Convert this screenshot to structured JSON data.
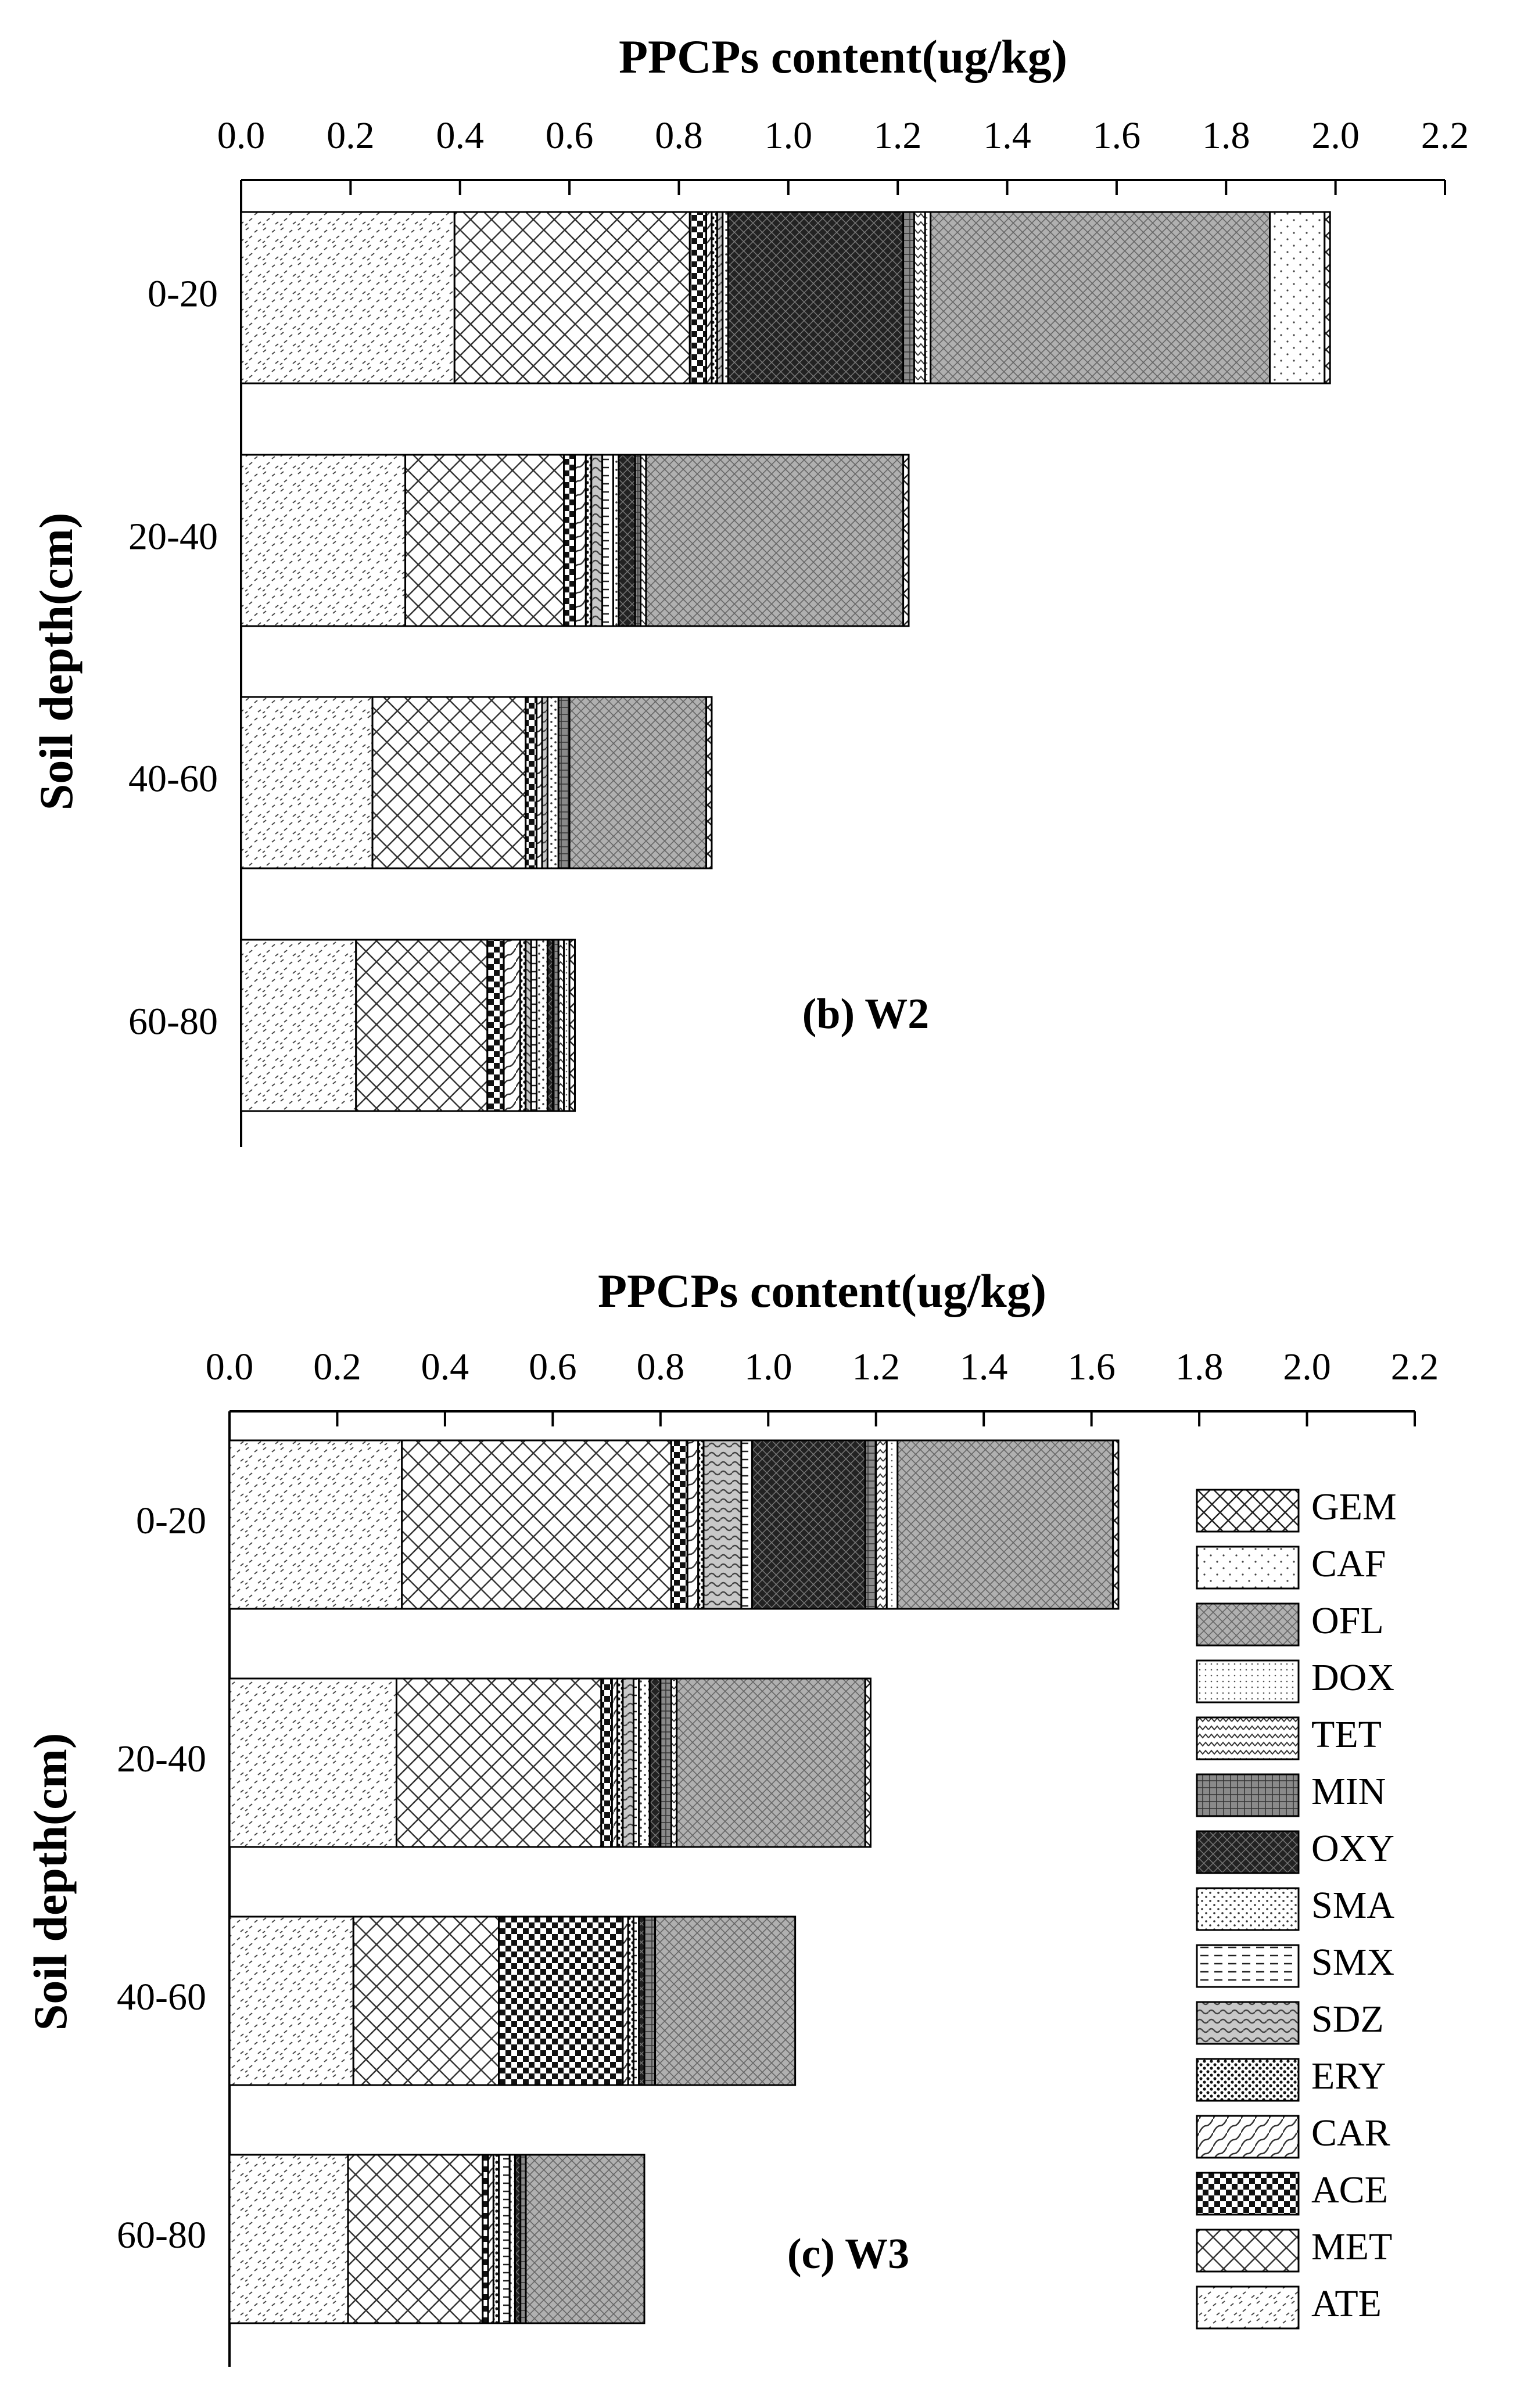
{
  "chart_data": [
    {
      "type": "bar",
      "orientation": "horizontal",
      "stacked": true,
      "title": "PPCPs content(ug/kg)",
      "xlabel": "PPCPs content(ug/kg)",
      "ylabel": "Soil depth(cm)",
      "panel_label": "(b) W2",
      "xlim": [
        0,
        2.2
      ],
      "xticks": [
        "0.0",
        "0.2",
        "0.4",
        "0.6",
        "0.8",
        "1.0",
        "1.2",
        "1.4",
        "1.6",
        "1.8",
        "2.0",
        "2.2"
      ],
      "categories": [
        "0-20",
        "20-40",
        "40-60",
        "60-80"
      ],
      "series": [
        {
          "name": "ATE",
          "values": [
            0.39,
            0.3,
            0.24,
            0.21
          ]
        },
        {
          "name": "MET",
          "values": [
            0.43,
            0.29,
            0.28,
            0.24
          ]
        },
        {
          "name": "ACE",
          "values": [
            0.03,
            0.02,
            0.02,
            0.03
          ]
        },
        {
          "name": "CAR",
          "values": [
            0.01,
            0.02,
            0.01,
            0.03
          ]
        },
        {
          "name": "ERY",
          "values": [
            0.01,
            0.01,
            0.0,
            0.01
          ]
        },
        {
          "name": "SDZ",
          "values": [
            0.01,
            0.02,
            0.01,
            0.01
          ]
        },
        {
          "name": "SMX",
          "values": [
            0.0,
            0.02,
            0.0,
            0.01
          ]
        },
        {
          "name": "SMA",
          "values": [
            0.01,
            0.01,
            0.02,
            0.02
          ]
        },
        {
          "name": "OXY",
          "values": [
            0.32,
            0.03,
            0.0,
            0.01
          ]
        },
        {
          "name": "MIN",
          "values": [
            0.02,
            0.01,
            0.02,
            0.01
          ]
        },
        {
          "name": "TET",
          "values": [
            0.02,
            0.01,
            0.0,
            0.01
          ]
        },
        {
          "name": "DOX",
          "values": [
            0.01,
            0.0,
            0.0,
            0.01
          ]
        },
        {
          "name": "OFL",
          "values": [
            0.62,
            0.47,
            0.25,
            0.0
          ]
        },
        {
          "name": "CAF",
          "values": [
            0.1,
            0.0,
            0.0,
            0.0
          ]
        },
        {
          "name": "GEM",
          "values": [
            0.01,
            0.01,
            0.01,
            0.01
          ]
        }
      ]
    },
    {
      "type": "bar",
      "orientation": "horizontal",
      "stacked": true,
      "title": "PPCPs content(ug/kg)",
      "xlabel": "PPCPs content(ug/kg)",
      "ylabel": "Soil depth(cm)",
      "panel_label": "(c) W3",
      "xlim": [
        0,
        2.2
      ],
      "xticks": [
        "0.0",
        "0.2",
        "0.4",
        "0.6",
        "0.8",
        "1.0",
        "1.2",
        "1.4",
        "1.6",
        "1.8",
        "2.0",
        "2.2"
      ],
      "categories": [
        "0-20",
        "20-40",
        "40-60",
        "60-80"
      ],
      "series": [
        {
          "name": "ATE",
          "values": [
            0.32,
            0.31,
            0.23,
            0.22
          ]
        },
        {
          "name": "MET",
          "values": [
            0.5,
            0.38,
            0.27,
            0.25
          ]
        },
        {
          "name": "ACE",
          "values": [
            0.03,
            0.02,
            0.23,
            0.01
          ]
        },
        {
          "name": "CAR",
          "values": [
            0.02,
            0.01,
            0.01,
            0.01
          ]
        },
        {
          "name": "ERY",
          "values": [
            0.01,
            0.01,
            0.01,
            0.01
          ]
        },
        {
          "name": "SDZ",
          "values": [
            0.07,
            0.02,
            0.0,
            0.0
          ]
        },
        {
          "name": "SMX",
          "values": [
            0.02,
            0.01,
            0.01,
            0.02
          ]
        },
        {
          "name": "SMA",
          "values": [
            0.0,
            0.02,
            0.0,
            0.01
          ]
        },
        {
          "name": "OXY",
          "values": [
            0.21,
            0.02,
            0.01,
            0.01
          ]
        },
        {
          "name": "MIN",
          "values": [
            0.02,
            0.02,
            0.02,
            0.01
          ]
        },
        {
          "name": "TET",
          "values": [
            0.02,
            0.01,
            0.0,
            0.0
          ]
        },
        {
          "name": "DOX",
          "values": [
            0.02,
            0.0,
            0.0,
            0.0
          ]
        },
        {
          "name": "OFL",
          "values": [
            0.4,
            0.35,
            0.26,
            0.22
          ]
        },
        {
          "name": "CAF",
          "values": [
            0.0,
            0.0,
            0.0,
            0.0
          ]
        },
        {
          "name": "GEM",
          "values": [
            0.01,
            0.01,
            0.0,
            0.0
          ]
        }
      ]
    }
  ],
  "legend": {
    "placement": "bottom-right of panel (c)",
    "entries": [
      "GEM",
      "CAF",
      "OFL",
      "DOX",
      "TET",
      "MIN",
      "OXY",
      "SMA",
      "SMX",
      "SDZ",
      "ERY",
      "CAR",
      "ACE",
      "MET",
      "ATE"
    ]
  }
}
